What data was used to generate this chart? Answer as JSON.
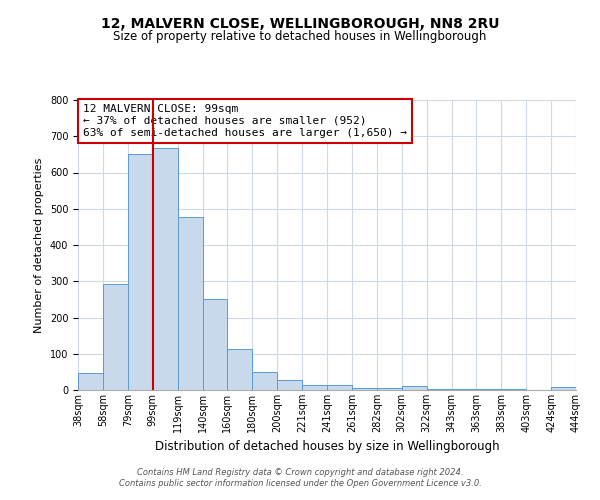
{
  "title": "12, MALVERN CLOSE, WELLINGBOROUGH, NN8 2RU",
  "subtitle": "Size of property relative to detached houses in Wellingborough",
  "xlabel": "Distribution of detached houses by size in Wellingborough",
  "ylabel": "Number of detached properties",
  "bin_labels": [
    "38sqm",
    "58sqm",
    "79sqm",
    "99sqm",
    "119sqm",
    "140sqm",
    "160sqm",
    "180sqm",
    "200sqm",
    "221sqm",
    "241sqm",
    "261sqm",
    "282sqm",
    "302sqm",
    "322sqm",
    "343sqm",
    "363sqm",
    "383sqm",
    "403sqm",
    "424sqm",
    "444sqm"
  ],
  "bar_heights": [
    47,
    293,
    652,
    668,
    478,
    252,
    113,
    49,
    28,
    15,
    13,
    5,
    5,
    10,
    3,
    3,
    3,
    3,
    0,
    8
  ],
  "bar_color": "#c9d9ec",
  "bar_edge_color": "#5b9bd5",
  "vline_x": 3,
  "vline_color": "#cc0000",
  "annotation_line1": "12 MALVERN CLOSE: 99sqm",
  "annotation_line2": "← 37% of detached houses are smaller (952)",
  "annotation_line3": "63% of semi-detached houses are larger (1,650) →",
  "annotation_box_color": "#ffffff",
  "annotation_box_edge": "#cc0000",
  "ylim": [
    0,
    800
  ],
  "yticks": [
    0,
    100,
    200,
    300,
    400,
    500,
    600,
    700,
    800
  ],
  "footnote1": "Contains HM Land Registry data © Crown copyright and database right 2024.",
  "footnote2": "Contains public sector information licensed under the Open Government Licence v3.0.",
  "background_color": "#ffffff",
  "grid_color": "#d0d8e4",
  "title_fontsize": 10,
  "subtitle_fontsize": 8.5,
  "xlabel_fontsize": 8.5,
  "ylabel_fontsize": 8,
  "tick_fontsize": 7,
  "annotation_fontsize": 8,
  "footnote_fontsize": 6
}
